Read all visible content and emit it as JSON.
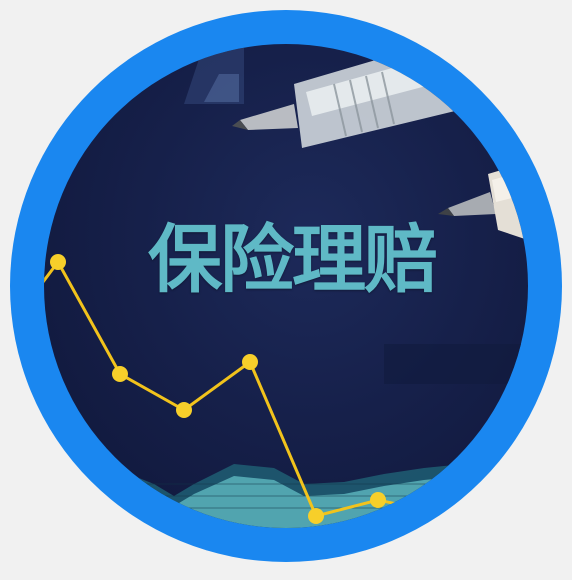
{
  "image": {
    "caption": "保险理赔",
    "subjects": [
      "pen-icon",
      "pen-icon",
      "line-chart",
      "bar-chart"
    ],
    "colors": {
      "ring": "#1a87f0",
      "background": "#f1f1f1",
      "paper": "#16204a",
      "caption_text": "#5fb9c6",
      "chart_line": "#f2c31c",
      "chart_bars": "#6fc8c8"
    }
  }
}
